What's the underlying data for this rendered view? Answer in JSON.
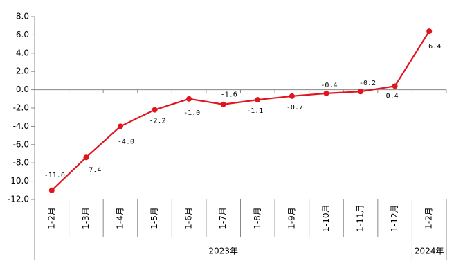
{
  "chart_data": {
    "type": "line",
    "color": "#e0151f",
    "groups": [
      {
        "name": "2023年",
        "categories": [
          "1-2月",
          "1-3月",
          "1-4月",
          "1-5月",
          "1-6月",
          "1-7月",
          "1-8月",
          "1-9月",
          "1-10月",
          "1-11月",
          "1-12月"
        ]
      },
      {
        "name": "2024年",
        "categories": [
          "1-2月"
        ]
      }
    ],
    "values": [
      -11.0,
      -7.4,
      -4.0,
      -2.2,
      -1.0,
      -1.6,
      -1.1,
      -0.7,
      -0.4,
      -0.2,
      0.4,
      6.4
    ],
    "value_labels": [
      "-11.0",
      "-7.4",
      "-4.0",
      "-2.2",
      "-1.0",
      "-1.6",
      "-1.1",
      "-0.7",
      "-0.4",
      "-0.2",
      "0.4",
      "6.4"
    ],
    "ylim": [
      -12,
      8
    ],
    "yticks": [
      {
        "value": -12,
        "label": "-12.0"
      },
      {
        "value": -10,
        "label": "-10.0"
      },
      {
        "value": -8,
        "label": "-8.0"
      },
      {
        "value": -6,
        "label": "-6.0"
      },
      {
        "value": -4,
        "label": "-4.0"
      },
      {
        "value": -2,
        "label": "-2.0"
      },
      {
        "value": 0,
        "label": "0.0"
      },
      {
        "value": 2,
        "label": "2.0"
      },
      {
        "value": 4,
        "label": "4.0"
      },
      {
        "value": 6,
        "label": "6.0"
      },
      {
        "value": 8,
        "label": "8.0"
      }
    ]
  }
}
